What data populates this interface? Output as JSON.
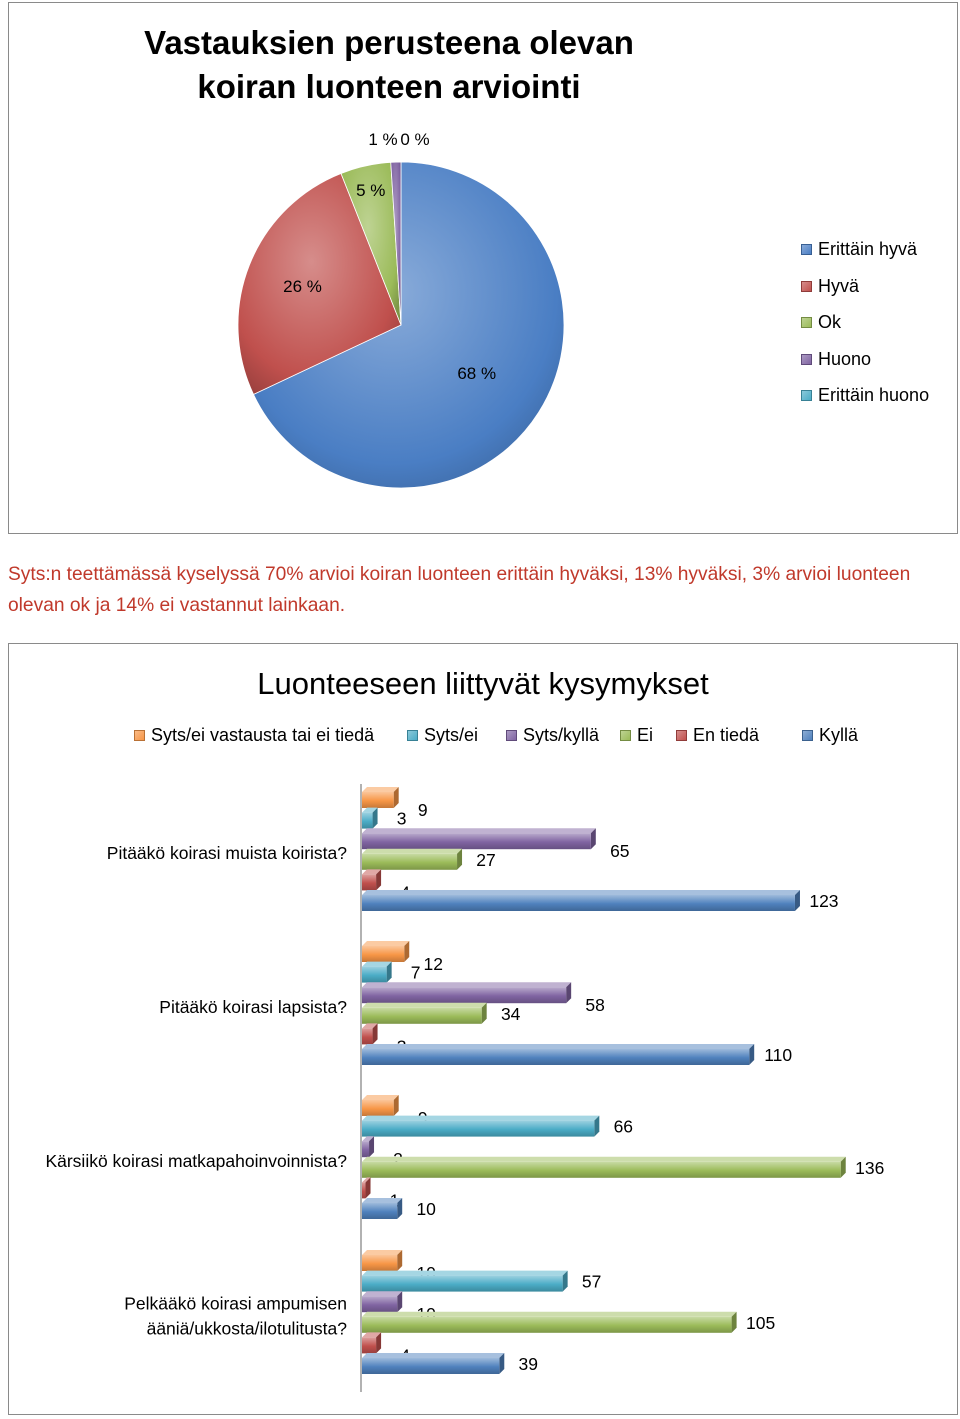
{
  "chart_data": [
    {
      "type": "pie",
      "title": "Vastauksien perusteena olevan koiran luonteen arviointi",
      "legend_position": "right",
      "slices": [
        {
          "name": "Erittäin hyvä",
          "label": "68 %",
          "value": 68,
          "color": "#4a7ec4"
        },
        {
          "name": "Hyvä",
          "label": "26 %",
          "value": 26,
          "color": "#c0504d"
        },
        {
          "name": "Ok",
          "label": "5 %",
          "value": 5,
          "color": "#9bbb59"
        },
        {
          "name": "Huono",
          "label": "1 %",
          "value": 1,
          "color": "#8064a2"
        },
        {
          "name": "Erittäin huono",
          "label": "0 %",
          "value": 0,
          "color": "#4bacc6"
        }
      ]
    },
    {
      "type": "bar",
      "orientation": "horizontal",
      "title": "Luonteeseen liittyvät kysymykset",
      "legend_position": "top",
      "grid": false,
      "xlim": [
        0,
        140
      ],
      "categories": [
        "Pitääkö koirasi muista koirista?",
        "Pitääkö koirasi lapsista?",
        "Kärsiikö koirasi matkapahoinvoinnista?",
        "Pelkääkö koirasi ampumisen ääniä/ukkosta/ilotulitusta?"
      ],
      "category_lines": [
        [
          "Pitääkö koirasi muista koirista?"
        ],
        [
          "Pitääkö koirasi lapsista?"
        ],
        [
          "Kärsiikö koirasi matkapahoinvoinnista?"
        ],
        [
          "Pelkääkö koirasi ampumisen",
          "ääniä/ukkosta/ilotulitusta?"
        ]
      ],
      "series": [
        {
          "name": "Syts/ei vastausta tai ei tiedä",
          "color": "#f79646",
          "values": [
            9,
            12,
            9,
            10
          ]
        },
        {
          "name": "Syts/ei",
          "color": "#4bacc6",
          "values": [
            3,
            7,
            66,
            57
          ]
        },
        {
          "name": "Syts/kyllä",
          "color": "#8064a2",
          "values": [
            65,
            58,
            2,
            10
          ]
        },
        {
          "name": "Ei",
          "color": "#9bbb59",
          "values": [
            27,
            34,
            136,
            105
          ]
        },
        {
          "name": "En tiedä",
          "color": "#c0504d",
          "values": [
            4,
            3,
            1,
            4
          ]
        },
        {
          "name": "Kyllä",
          "color": "#4f81bd",
          "values": [
            123,
            110,
            10,
            39
          ]
        }
      ]
    }
  ],
  "note": "Syts:n teettämässä kyselyssä 70% arvioi koiran luonteen erittäin hyväksi, 13% hyväksi, 3% arvioi luonteen olevan ok ja 14% ei vastannut lainkaan."
}
